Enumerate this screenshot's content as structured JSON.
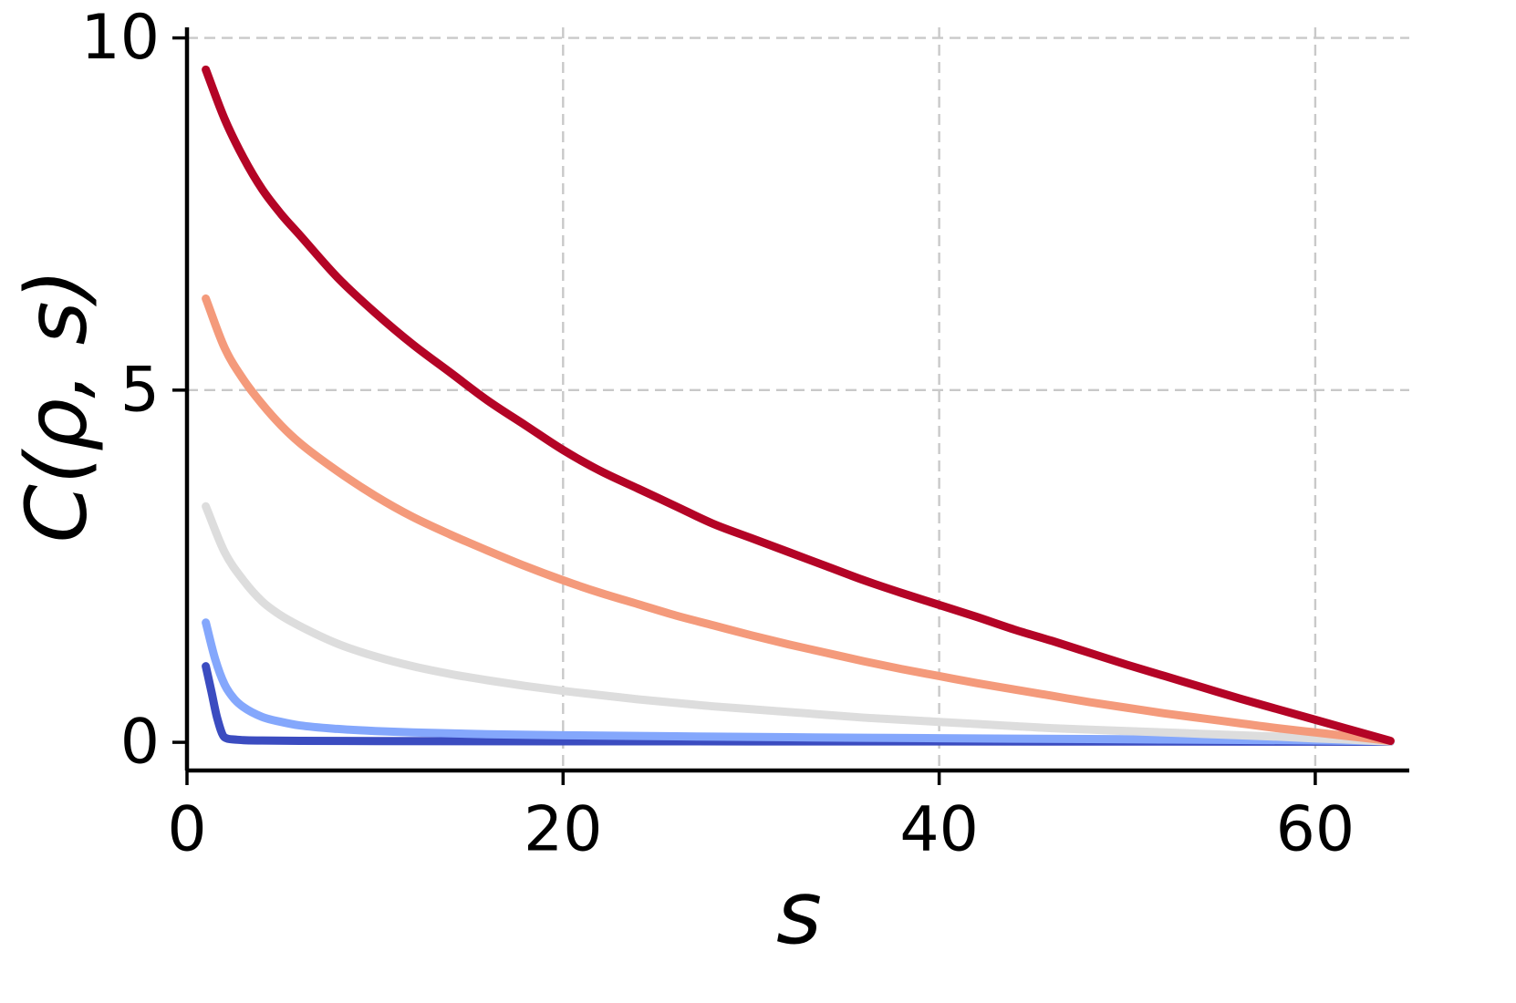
{
  "chart_data": {
    "type": "line",
    "title": "",
    "xlabel": "s",
    "ylabel": "C(ρ, s)",
    "xlim": [
      0,
      65
    ],
    "ylim": [
      -0.4,
      10.15
    ],
    "xticks": [
      0,
      20,
      40,
      60
    ],
    "yticks": [
      0,
      5,
      10
    ],
    "grid": true,
    "grid_style": "dashed",
    "grid_color": "#c9c9c9",
    "axis_color": "#000000",
    "background": "#ffffff",
    "legend": "none",
    "line_width": 9,
    "colormap": "coolwarm",
    "series": [
      {
        "name": "curve-dark-blue",
        "color": "#3b4cc0",
        "x": [
          1,
          1.3,
          1.6,
          2,
          2.5,
          3,
          4,
          6,
          10,
          20,
          30,
          40,
          50,
          60,
          64
        ],
        "y": [
          1.08,
          0.72,
          0.35,
          0.07,
          0.04,
          0.03,
          0.025,
          0.02,
          0.018,
          0.015,
          0.013,
          0.012,
          0.011,
          0.01,
          0.008
        ]
      },
      {
        "name": "curve-light-blue",
        "color": "#84a7fc",
        "x": [
          1,
          1.5,
          2,
          2.5,
          3,
          4,
          5,
          6,
          8,
          10,
          12,
          16,
          20,
          24,
          28,
          32,
          36,
          40,
          44,
          48,
          52,
          56,
          60,
          64
        ],
        "y": [
          1.7,
          1.18,
          0.82,
          0.62,
          0.5,
          0.36,
          0.29,
          0.24,
          0.19,
          0.16,
          0.14,
          0.115,
          0.1,
          0.09,
          0.08,
          0.072,
          0.065,
          0.058,
          0.052,
          0.046,
          0.04,
          0.034,
          0.028,
          0.015
        ]
      },
      {
        "name": "curve-light-gray",
        "color": "#dddddd",
        "x": [
          1,
          2,
          3,
          4,
          5,
          6,
          8,
          10,
          12,
          14,
          16,
          18,
          20,
          22,
          24,
          26,
          28,
          30,
          32,
          34,
          36,
          38,
          40,
          42,
          44,
          46,
          48,
          50,
          52,
          54,
          56,
          58,
          60,
          62,
          64
        ],
        "y": [
          3.35,
          2.7,
          2.3,
          2.0,
          1.8,
          1.65,
          1.4,
          1.22,
          1.08,
          0.97,
          0.88,
          0.8,
          0.73,
          0.67,
          0.61,
          0.56,
          0.51,
          0.47,
          0.43,
          0.39,
          0.35,
          0.32,
          0.29,
          0.26,
          0.23,
          0.2,
          0.18,
          0.16,
          0.14,
          0.12,
          0.1,
          0.08,
          0.055,
          0.035,
          0.01
        ]
      },
      {
        "name": "curve-salmon",
        "color": "#f49a7b",
        "x": [
          1,
          2,
          3,
          4,
          5,
          6,
          8,
          10,
          12,
          14,
          16,
          18,
          20,
          22,
          24,
          26,
          28,
          30,
          32,
          34,
          36,
          38,
          40,
          42,
          44,
          46,
          48,
          50,
          52,
          54,
          56,
          58,
          60,
          62,
          64
        ],
        "y": [
          6.3,
          5.6,
          5.15,
          4.8,
          4.5,
          4.25,
          3.85,
          3.5,
          3.2,
          2.95,
          2.72,
          2.5,
          2.3,
          2.12,
          1.96,
          1.8,
          1.66,
          1.52,
          1.39,
          1.27,
          1.15,
          1.04,
          0.94,
          0.84,
          0.75,
          0.66,
          0.57,
          0.49,
          0.41,
          0.34,
          0.27,
          0.2,
          0.14,
          0.08,
          0.02
        ]
      },
      {
        "name": "curve-dark-red",
        "color": "#b40426",
        "x": [
          1,
          2,
          3,
          4,
          5,
          6,
          8,
          10,
          12,
          14,
          16,
          18,
          20,
          22,
          24,
          26,
          28,
          30,
          32,
          34,
          36,
          38,
          40,
          42,
          44,
          46,
          48,
          50,
          52,
          54,
          56,
          58,
          60,
          62,
          64
        ],
        "y": [
          9.55,
          8.85,
          8.3,
          7.85,
          7.5,
          7.2,
          6.6,
          6.1,
          5.65,
          5.25,
          4.85,
          4.5,
          4.15,
          3.85,
          3.6,
          3.35,
          3.1,
          2.9,
          2.7,
          2.5,
          2.3,
          2.12,
          1.95,
          1.78,
          1.6,
          1.44,
          1.27,
          1.1,
          0.94,
          0.78,
          0.62,
          0.47,
          0.32,
          0.17,
          0.02
        ]
      }
    ]
  }
}
